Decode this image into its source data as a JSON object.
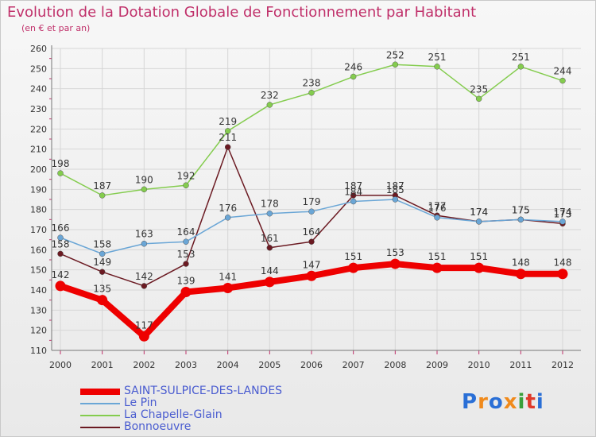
{
  "title": "Evolution de la Dotation Globale de Fonctionnement par Habitant",
  "subtitle": "(en € et par an)",
  "logo": {
    "letters": [
      "P",
      "r",
      "o",
      "x",
      "i",
      "t",
      "i"
    ],
    "colors": [
      "#2a6fd6",
      "#f08a1c",
      "#2a6fd6",
      "#f08a1c",
      "#3aa03a",
      "#e03a2a",
      "#2a6fd6"
    ]
  },
  "chart_data": {
    "type": "line",
    "x": [
      "2000",
      "2001",
      "2002",
      "2003",
      "2004",
      "2005",
      "2006",
      "2007",
      "2008",
      "2009",
      "2010",
      "2011",
      "2012"
    ],
    "ylim": [
      110,
      260
    ],
    "yticks": [
      110,
      120,
      130,
      140,
      150,
      160,
      170,
      180,
      190,
      200,
      210,
      220,
      230,
      240,
      250,
      260
    ],
    "grid": true,
    "legend_position": "bottom-left",
    "series": [
      {
        "name": "Bonnoeuvre",
        "color": "#6b1a22",
        "values": [
          158,
          149,
          142,
          153,
          211,
          161,
          164,
          187,
          187,
          177,
          174,
          175,
          173
        ],
        "labels": [
          "158",
          "149",
          "142",
          "153",
          "211",
          "161",
          "164",
          "187",
          "187",
          "177",
          "174",
          "175",
          "173"
        ]
      },
      {
        "name": "La Chapelle-Glain",
        "color": "#84cc4e",
        "values": [
          198,
          187,
          190,
          192,
          219,
          232,
          238,
          246,
          252,
          251,
          235,
          251,
          244
        ],
        "labels": [
          "198",
          "187",
          "190",
          "192",
          "219",
          "232",
          "238",
          "246",
          "252",
          "251",
          "235",
          "251",
          "244"
        ]
      },
      {
        "name": "Le Pin",
        "color": "#6aa6d6",
        "values": [
          166,
          158,
          163,
          164,
          176,
          178,
          179,
          184,
          185,
          176,
          174,
          175,
          174
        ],
        "labels": [
          "166",
          "158",
          "163",
          "164",
          "176",
          "178",
          "179",
          "184",
          "185",
          "176",
          "174",
          "175",
          "174"
        ]
      },
      {
        "name": "SAINT-SULPICE-DES-LANDES",
        "color": "#ee0000",
        "values": [
          142,
          135,
          117,
          139,
          141,
          144,
          147,
          151,
          153,
          151,
          151,
          148,
          148
        ],
        "labels": [
          "142",
          "135",
          "117",
          "139",
          "141",
          "144",
          "147",
          "151",
          "153",
          "151",
          "151",
          "148",
          "148"
        ]
      }
    ],
    "legend": [
      {
        "name": "SAINT-SULPICE-DES-LANDES",
        "color": "#ee0000"
      },
      {
        "name": "Le Pin",
        "color": "#6aa6d6"
      },
      {
        "name": "La Chapelle-Glain",
        "color": "#84cc4e"
      },
      {
        "name": "Bonnoeuvre",
        "color": "#6b1a22"
      }
    ]
  }
}
